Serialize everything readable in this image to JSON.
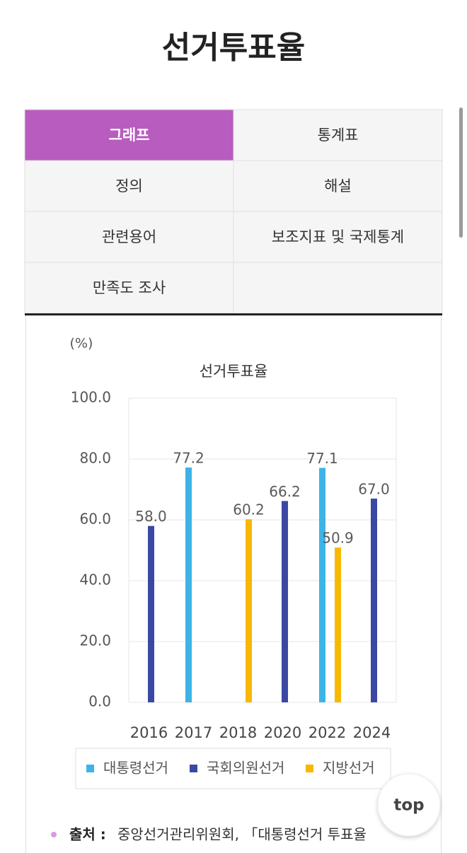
{
  "header": {
    "title": "선거투표율"
  },
  "tabs": [
    "그래프",
    "통계표",
    "정의",
    "해설",
    "관련용어",
    "보조지표 및 국제통계",
    "만족도 조사"
  ],
  "active_tab": 0,
  "chart_data": {
    "type": "bar",
    "title": "선거투표율",
    "y_label": "(%)",
    "categories": [
      "2016",
      "2017",
      "2018",
      "2020",
      "2022",
      "2024"
    ],
    "series": [
      {
        "name": "대통령선거",
        "color": "#3db4e7",
        "values": [
          null,
          77.2,
          null,
          null,
          77.1,
          null
        ],
        "value_labels": [
          null,
          "77.2",
          null,
          null,
          "77.1",
          null
        ]
      },
      {
        "name": "국회의원선거",
        "color": "#3b48a3",
        "values": [
          58.0,
          null,
          null,
          66.2,
          null,
          67.0
        ],
        "value_labels": [
          "58.0",
          null,
          null,
          "66.2",
          null,
          "67.0"
        ]
      },
      {
        "name": "지방선거",
        "color": "#f8b800",
        "values": [
          null,
          null,
          60.2,
          null,
          50.9,
          null
        ],
        "value_labels": [
          null,
          null,
          "60.2",
          null,
          "50.9",
          null
        ]
      }
    ],
    "ylim": [
      0,
      100
    ],
    "yticks": [
      {
        "value": 0,
        "label": "0.0"
      },
      {
        "value": 20,
        "label": "20.0"
      },
      {
        "value": 40,
        "label": "40.0"
      },
      {
        "value": 60,
        "label": "60.0"
      },
      {
        "value": 80,
        "label": "80.0"
      },
      {
        "value": 100,
        "label": "100.0"
      }
    ],
    "grid": true,
    "legend": "bottom"
  },
  "source": {
    "label": "출처 :",
    "text": "중앙선거관리위원회, 「대통령선거 투표율"
  },
  "top_button": "top"
}
